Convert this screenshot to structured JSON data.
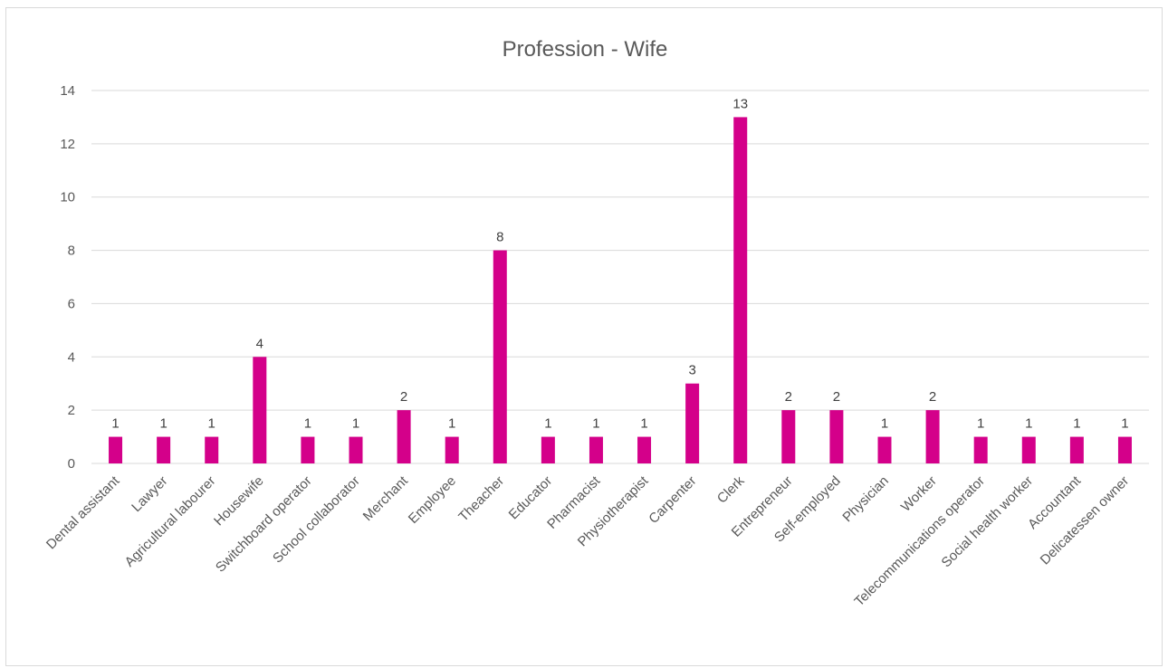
{
  "chart_data": {
    "type": "bar",
    "title": "Profession - Wife",
    "xlabel": "",
    "ylabel": "",
    "categories": [
      "Dental assistant",
      "Lawyer",
      "Agricultural labourer",
      "Housewife",
      "Switchboard operator",
      "School collaborator",
      "Merchant",
      "Employee",
      "Theacher",
      "Educator",
      "Pharmacist",
      "Physiotherapist",
      "Carpenter",
      "Clerk",
      "Entrepreneur",
      "Self-employed",
      "Physician",
      "Worker",
      "Telecommunications operator",
      "Social health worker",
      "Accountant",
      "Delicatessen owner"
    ],
    "values": [
      1,
      1,
      1,
      4,
      1,
      1,
      2,
      1,
      8,
      1,
      1,
      1,
      3,
      13,
      2,
      2,
      1,
      2,
      1,
      1,
      1,
      1
    ],
    "ylim": [
      0,
      14
    ],
    "yticks": [
      0,
      2,
      4,
      6,
      8,
      10,
      12,
      14
    ],
    "grid": true,
    "legend": "none",
    "data_labels": true,
    "colors": {
      "bar": "#D4008A",
      "grid": "#d9d9d9",
      "axis_text": "#595959",
      "title": "#595959"
    }
  }
}
